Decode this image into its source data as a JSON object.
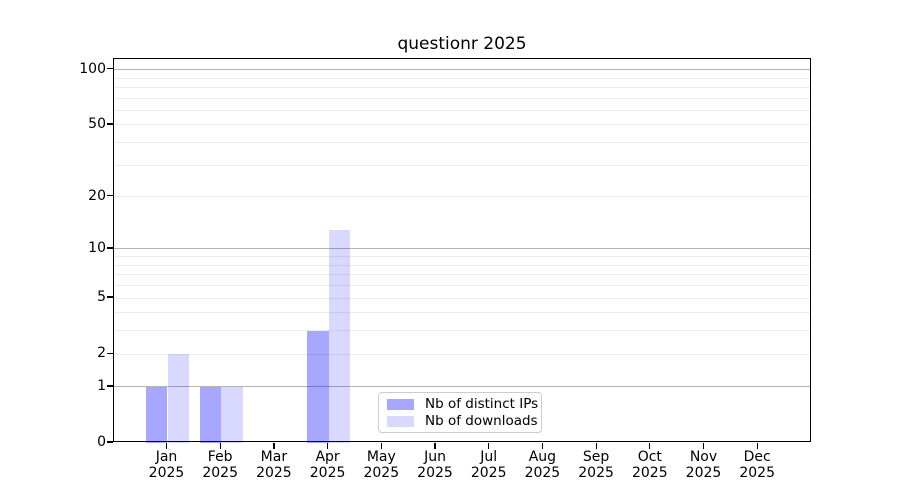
{
  "chart_data": {
    "type": "bar",
    "title": "questionr 2025",
    "categories": [
      "Jan",
      "Feb",
      "Mar",
      "Apr",
      "May",
      "Jun",
      "Jul",
      "Aug",
      "Sep",
      "Oct",
      "Nov",
      "Dec"
    ],
    "year_label": "2025",
    "series": [
      {
        "name": "Nb of distinct IPs",
        "color": "rgba(0,0,255,0.345)",
        "color_hex": "#A7A9F9",
        "values": [
          1,
          1,
          0,
          3,
          0,
          0,
          0,
          0,
          0,
          0,
          0,
          0
        ]
      },
      {
        "name": "Nb of downloads",
        "color": "rgba(0,0,255,0.15)",
        "color_hex": "#DADCFA",
        "values": [
          2,
          1,
          0,
          13,
          0,
          0,
          0,
          0,
          0,
          0,
          0,
          0
        ]
      }
    ],
    "y_scale": "log1p",
    "ylim": [
      0,
      116
    ],
    "y_tick_values": [
      0,
      1,
      2,
      5,
      10,
      20,
      50,
      100
    ],
    "y_tick_labels": [
      "0",
      "1",
      "2",
      "5",
      "10",
      "20",
      "50",
      "100"
    ],
    "grid_major_values": [
      1,
      10,
      100
    ],
    "grid_minor_values": [
      2,
      3,
      4,
      5,
      6,
      7,
      8,
      9,
      20,
      30,
      40,
      50,
      60,
      70,
      80,
      90
    ],
    "grid": "on",
    "legend_position": "lower center",
    "xlabel": "",
    "ylabel": ""
  }
}
